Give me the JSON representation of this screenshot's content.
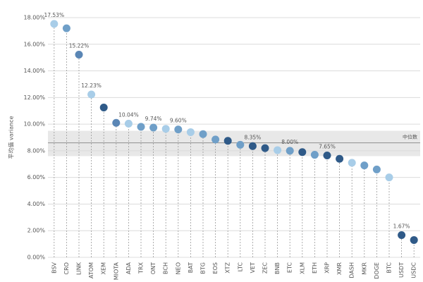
{
  "chart_data": {
    "type": "lollipop",
    "y_label": "平均值 variance",
    "categories": [
      "BSV",
      "CRO",
      "LINK",
      "ATOM",
      "XEM",
      "MIOTA",
      "ADA",
      "TRX",
      "ONT",
      "BCH",
      "NEO",
      "BAT",
      "BTG",
      "EOS",
      "XTZ",
      "LTC",
      "VET",
      "ZEC",
      "BNB",
      "ETC",
      "XLM",
      "ETH",
      "XRP",
      "XMR",
      "DASH",
      "MKR",
      "DOGE",
      "BTC",
      "USDT",
      "USDC"
    ],
    "values": [
      17.53,
      17.2,
      15.22,
      12.23,
      11.25,
      10.1,
      10.04,
      9.8,
      9.74,
      9.65,
      9.6,
      9.4,
      9.25,
      8.85,
      8.75,
      8.45,
      8.35,
      8.2,
      8.05,
      8.0,
      7.9,
      7.7,
      7.65,
      7.4,
      7.1,
      6.9,
      6.6,
      6.0,
      1.67,
      1.3
    ],
    "value_labels": [
      "17.53%",
      null,
      "15.22%",
      "12.23%",
      null,
      null,
      "10.04%",
      null,
      "9.74%",
      null,
      "9.60%",
      null,
      null,
      null,
      null,
      null,
      "8.35%",
      null,
      null,
      "8.00%",
      null,
      null,
      "7.65%",
      null,
      null,
      null,
      null,
      null,
      "1.67%",
      null
    ],
    "colors": [
      "#a8cde8",
      "#6f9fc8",
      "#5a86b5",
      "#a8cde8",
      "#2f5a88",
      "#5a86b5",
      "#a8cde8",
      "#6f9fc8",
      "#6f9fc8",
      "#a8cde8",
      "#6f9fc8",
      "#a8cde8",
      "#6f9fc8",
      "#6f9fc8",
      "#2f5a88",
      "#6f9fc8",
      "#2f5a88",
      "#2f5a88",
      "#a8cde8",
      "#6f9fc8",
      "#2f5a88",
      "#6f9fc8",
      "#2f5a88",
      "#2f5a88",
      "#a8cde8",
      "#6f9fc8",
      "#6f9fc8",
      "#a8cde8",
      "#2f5a88",
      "#2f5a88"
    ],
    "median": {
      "label": "中位数",
      "value": 8.6
    },
    "band": [
      7.6,
      9.5
    ],
    "ylim": [
      0,
      18
    ],
    "yticks": [
      {
        "value": 0,
        "label": "0.00%"
      },
      {
        "value": 2,
        "label": "2.00%"
      },
      {
        "value": 4,
        "label": "4.00%"
      },
      {
        "value": 6,
        "label": "6.00%"
      },
      {
        "value": 8,
        "label": "8.00%"
      },
      {
        "value": 10,
        "label": "10.00%"
      },
      {
        "value": 12,
        "label": "12.00%"
      },
      {
        "value": 14,
        "label": "14.00%"
      },
      {
        "value": 16,
        "label": "16.00%"
      },
      {
        "value": 18,
        "label": "18.00%"
      }
    ],
    "grid": true
  }
}
